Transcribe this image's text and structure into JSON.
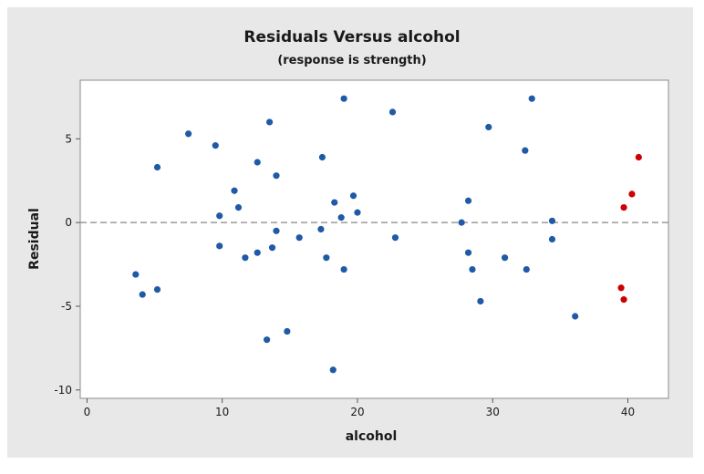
{
  "chart_data": {
    "type": "scatter",
    "title": "Residuals Versus alcohol",
    "subtitle": "(response is strength)",
    "xlabel": "alcohol",
    "ylabel": "Residual",
    "xlim": [
      -0.5,
      43
    ],
    "ylim": [
      -10.5,
      8.5
    ],
    "xticks": [
      0,
      10,
      20,
      30,
      40
    ],
    "yticks": [
      -10,
      -5,
      0,
      5
    ],
    "xtick_labels": [
      "0",
      "10",
      "20",
      "30",
      "40"
    ],
    "ytick_labels": [
      "-10",
      "-5",
      "0",
      "5"
    ],
    "reference_line": {
      "y": 0,
      "style": "dashed"
    },
    "grid": false,
    "legend": false,
    "series": [
      {
        "color": "#1f5aa6",
        "points": [
          [
            3.6,
            -3.1
          ],
          [
            4.1,
            -4.3
          ],
          [
            5.2,
            3.3
          ],
          [
            5.2,
            -4.0
          ],
          [
            7.5,
            5.3
          ],
          [
            9.5,
            4.6
          ],
          [
            9.8,
            0.4
          ],
          [
            9.8,
            -1.4
          ],
          [
            10.9,
            1.9
          ],
          [
            11.2,
            0.9
          ],
          [
            11.7,
            -2.1
          ],
          [
            12.6,
            3.6
          ],
          [
            12.6,
            -1.8
          ],
          [
            13.3,
            -7.0
          ],
          [
            13.5,
            6.0
          ],
          [
            13.7,
            -1.5
          ],
          [
            14.0,
            2.8
          ],
          [
            14.0,
            -0.5
          ],
          [
            14.8,
            -6.5
          ],
          [
            15.7,
            -0.9
          ],
          [
            17.3,
            -0.4
          ],
          [
            17.4,
            3.9
          ],
          [
            17.7,
            -2.1
          ],
          [
            18.2,
            -8.8
          ],
          [
            18.3,
            1.2
          ],
          [
            18.8,
            0.3
          ],
          [
            19.0,
            -2.8
          ],
          [
            19.0,
            7.4
          ],
          [
            19.7,
            1.6
          ],
          [
            20.0,
            0.6
          ],
          [
            22.6,
            6.6
          ],
          [
            22.8,
            -0.9
          ],
          [
            27.7,
            0.0
          ],
          [
            28.2,
            1.3
          ],
          [
            28.2,
            -1.8
          ],
          [
            28.5,
            -2.8
          ],
          [
            29.1,
            -4.7
          ],
          [
            29.7,
            5.7
          ],
          [
            30.9,
            -2.1
          ],
          [
            32.4,
            4.3
          ],
          [
            32.5,
            -2.8
          ],
          [
            32.9,
            7.4
          ],
          [
            34.4,
            0.1
          ],
          [
            34.4,
            -1.0
          ],
          [
            36.1,
            -5.6
          ]
        ]
      },
      {
        "color": "#cc0000",
        "points": [
          [
            39.5,
            -3.9
          ],
          [
            39.7,
            0.9
          ],
          [
            39.7,
            -4.6
          ],
          [
            40.3,
            1.7
          ],
          [
            40.8,
            3.9
          ]
        ]
      }
    ]
  },
  "colors": {
    "outer_background": "#e8e8e8",
    "plot_background": "#ffffff",
    "frame": "#8c8c8c",
    "reference_line": "#9a9a9a",
    "text": "#1a1a1a"
  }
}
